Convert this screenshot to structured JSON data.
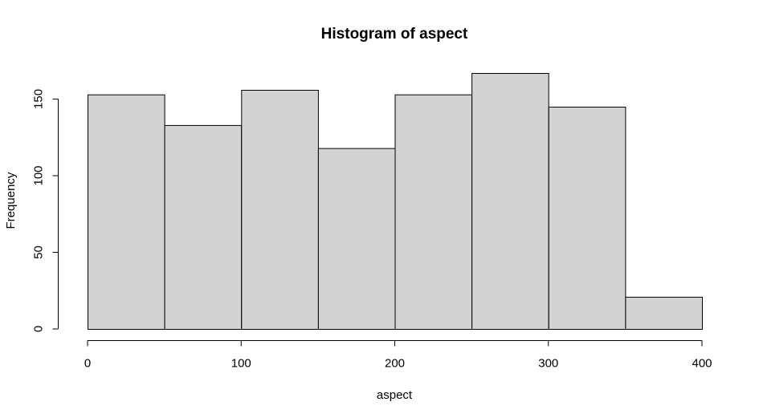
{
  "chart_data": {
    "type": "bar",
    "title": "Histogram of aspect",
    "xlabel": "aspect",
    "ylabel": "Frequency",
    "bins": [
      {
        "start": 0,
        "end": 50,
        "count": 153
      },
      {
        "start": 50,
        "end": 100,
        "count": 133
      },
      {
        "start": 100,
        "end": 150,
        "count": 156
      },
      {
        "start": 150,
        "end": 200,
        "count": 118
      },
      {
        "start": 200,
        "end": 250,
        "count": 153
      },
      {
        "start": 250,
        "end": 300,
        "count": 167
      },
      {
        "start": 300,
        "end": 350,
        "count": 145
      },
      {
        "start": 350,
        "end": 400,
        "count": 21
      }
    ],
    "xlim": [
      0,
      400
    ],
    "ylim": [
      0,
      167
    ],
    "x_ticks": [
      0,
      100,
      200,
      300,
      400
    ],
    "y_ticks": [
      0,
      50,
      100,
      150
    ],
    "bar_color": "#d3d3d3",
    "border_color": "#000000",
    "grid": false
  }
}
